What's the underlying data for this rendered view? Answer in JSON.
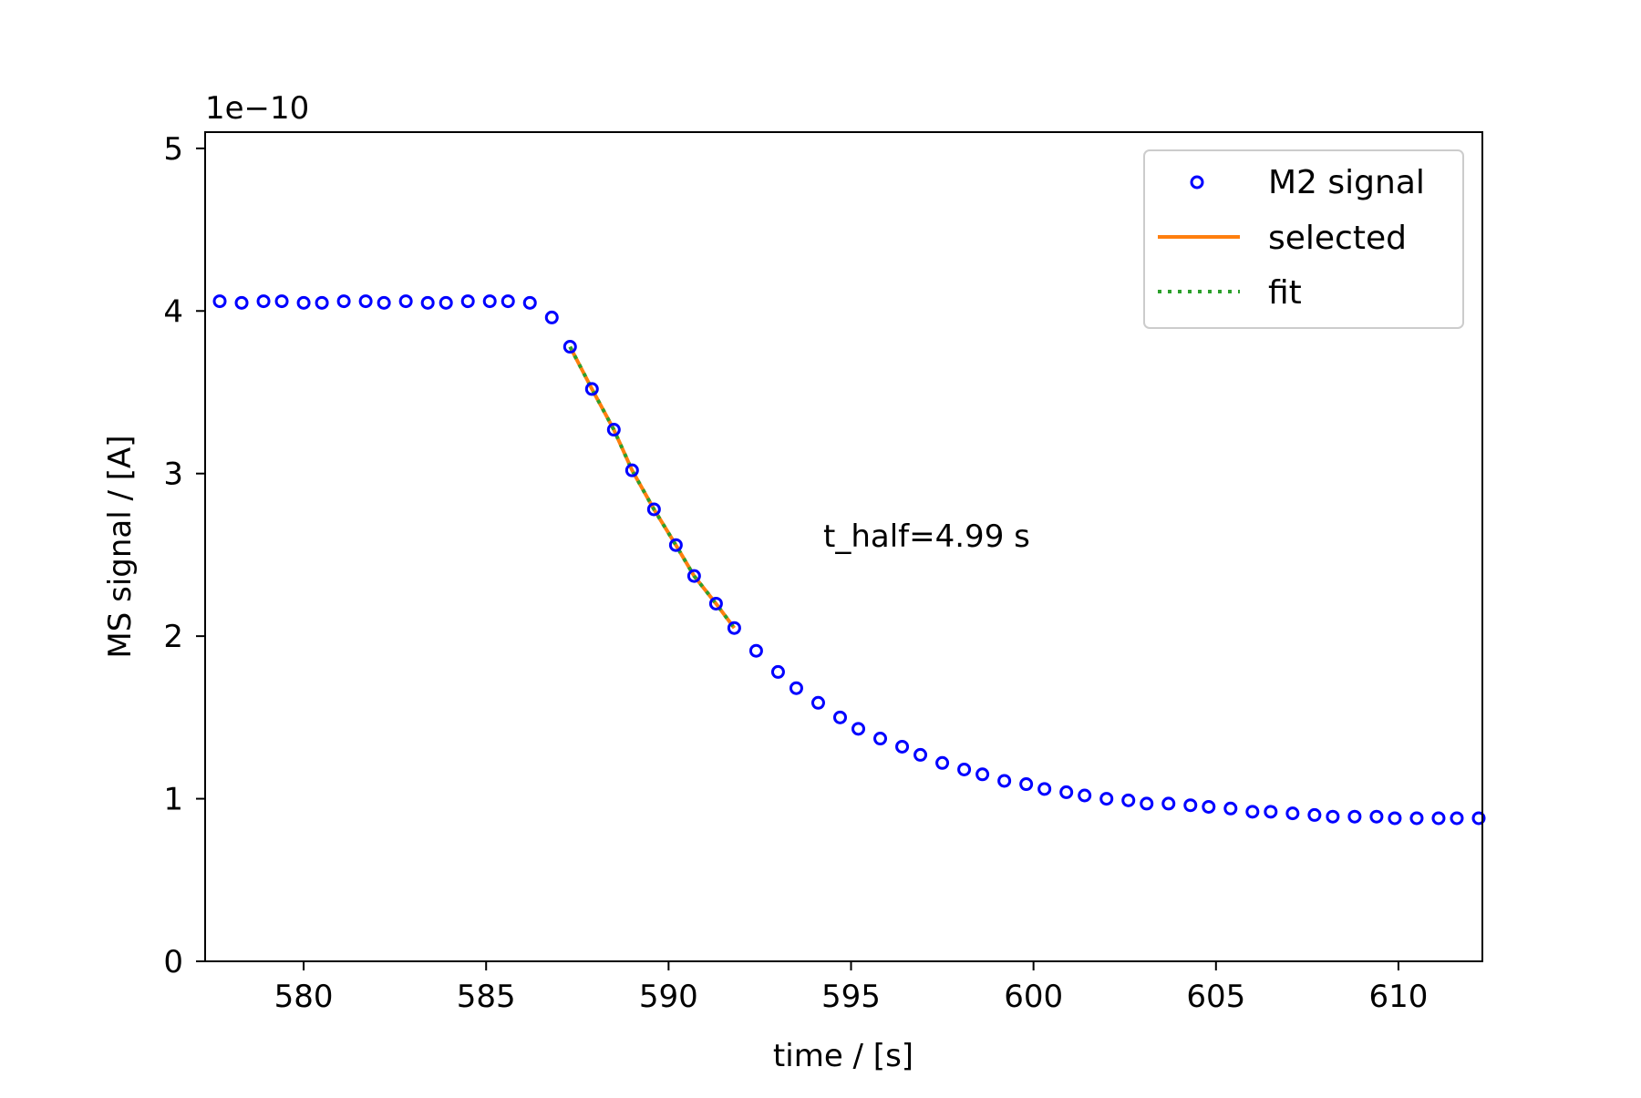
{
  "chart_data": {
    "type": "scatter",
    "title": "",
    "xlabel": "time / [s]",
    "ylabel": "MS signal / [A]",
    "y_offset_label": "1e−10",
    "xlim": [
      577.3,
      612.3
    ],
    "ylim": [
      0,
      5.1
    ],
    "x_ticks": [
      580,
      585,
      590,
      595,
      600,
      605,
      610
    ],
    "y_ticks": [
      0,
      1,
      2,
      3,
      4,
      5
    ],
    "grid": false,
    "legend_position": "top-right",
    "annotation": "t_half=4.99 s",
    "series": [
      {
        "name": "M2 signal",
        "kind": "scatter",
        "marker": "hollow-circle",
        "color": "#0000ff",
        "x": [
          577.7,
          578.3,
          578.9,
          579.4,
          580.0,
          580.5,
          581.1,
          581.7,
          582.2,
          582.8,
          583.4,
          583.9,
          584.5,
          585.1,
          585.6,
          586.2,
          586.8,
          587.3,
          587.9,
          588.5,
          589.0,
          589.6,
          590.2,
          590.7,
          591.3,
          591.8,
          592.4,
          593.0,
          593.5,
          594.1,
          594.7,
          595.2,
          595.8,
          596.4,
          596.9,
          597.5,
          598.1,
          598.6,
          599.2,
          599.8,
          600.3,
          600.9,
          601.4,
          602.0,
          602.6,
          603.1,
          603.7,
          604.3,
          604.8,
          605.4,
          606.0,
          606.5,
          607.1,
          607.7,
          608.2,
          608.8,
          609.4,
          609.9,
          610.5,
          611.1,
          611.6,
          612.2
        ],
        "y": [
          4.06,
          4.05,
          4.06,
          4.06,
          4.05,
          4.05,
          4.06,
          4.06,
          4.05,
          4.06,
          4.05,
          4.05,
          4.06,
          4.06,
          4.06,
          4.05,
          3.96,
          3.78,
          3.52,
          3.27,
          3.02,
          2.78,
          2.56,
          2.37,
          2.2,
          2.05,
          1.91,
          1.78,
          1.68,
          1.59,
          1.5,
          1.43,
          1.37,
          1.32,
          1.27,
          1.22,
          1.18,
          1.15,
          1.11,
          1.09,
          1.06,
          1.04,
          1.02,
          1.0,
          0.99,
          0.97,
          0.97,
          0.96,
          0.95,
          0.94,
          0.92,
          0.92,
          0.91,
          0.9,
          0.89,
          0.89,
          0.89,
          0.88,
          0.88,
          0.88,
          0.88,
          0.88
        ]
      },
      {
        "name": "selected",
        "kind": "line",
        "color": "#ff7f0e",
        "x": [
          587.3,
          587.9,
          588.5,
          589.0,
          589.6,
          590.2,
          590.7,
          591.3,
          591.8
        ],
        "y": [
          3.78,
          3.52,
          3.27,
          3.02,
          2.78,
          2.56,
          2.37,
          2.2,
          2.05
        ]
      },
      {
        "name": "fit",
        "kind": "dotted-line",
        "color": "#2ca02c",
        "x": [
          587.3,
          587.9,
          588.5,
          589.0,
          589.6,
          590.2,
          590.7,
          591.3,
          591.8
        ],
        "y": [
          3.78,
          3.52,
          3.27,
          3.02,
          2.78,
          2.56,
          2.37,
          2.2,
          2.05
        ]
      }
    ]
  }
}
